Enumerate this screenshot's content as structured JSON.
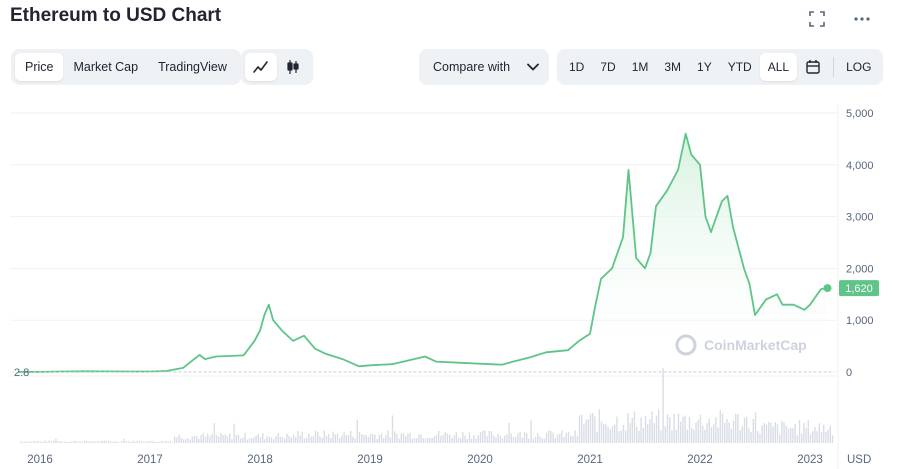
{
  "header": {
    "title": "Ethereum to USD Chart"
  },
  "chart_tabs": [
    {
      "label": "Price",
      "active": true
    },
    {
      "label": "Market Cap",
      "active": false
    },
    {
      "label": "TradingView",
      "active": false
    }
  ],
  "chart_style": {
    "line_icon": "line-chart-icon",
    "candle_icon": "candlestick-icon",
    "active": "line"
  },
  "compare": {
    "label": "Compare with",
    "icon": "chevron-down-icon"
  },
  "ranges": [
    {
      "label": "1D",
      "active": false
    },
    {
      "label": "7D",
      "active": false
    },
    {
      "label": "1M",
      "active": false
    },
    {
      "label": "3M",
      "active": false
    },
    {
      "label": "1Y",
      "active": false
    },
    {
      "label": "YTD",
      "active": false
    },
    {
      "label": "ALL",
      "active": true
    }
  ],
  "calendar_icon": "calendar-icon",
  "log_label": "LOG",
  "watermark": "CoinMarketCap",
  "colors": {
    "line": "#5ec487",
    "fill_top": "#d4f1de",
    "volume": "#d8dde6",
    "grid": "#eff2f5",
    "text_muted": "#58667e"
  },
  "chart_data": {
    "type": "area",
    "title": "Ethereum to USD Chart",
    "x_tick_labels": [
      "2016",
      "2017",
      "2018",
      "2019",
      "2020",
      "2021",
      "2022",
      "2023"
    ],
    "x_ticks": [
      2016.0,
      2017.0,
      2018.0,
      2019.0,
      2020.0,
      2021.0,
      2022.0,
      2023.0
    ],
    "y_ticks": [
      0,
      1000,
      2000,
      3000,
      4000,
      5000
    ],
    "y_tick_labels": [
      "0",
      "1,000",
      "2,000",
      "3,000",
      "4,000",
      "5,000"
    ],
    "ylim": [
      0,
      5000
    ],
    "xlim": [
      2015.8,
      2023.2
    ],
    "y_unit": "USD",
    "start_label": "2.8",
    "start_value": 2.8,
    "current_label": "1,620",
    "current_value": 1620,
    "grid": true,
    "series": [
      {
        "x": [
          2015.8,
          2016.0,
          2016.2,
          2016.4,
          2016.6,
          2016.8,
          2017.0,
          2017.15,
          2017.3,
          2017.45,
          2017.5,
          2017.6,
          2017.75,
          2017.85,
          2017.95,
          2018.0,
          2018.04,
          2018.08,
          2018.12,
          2018.2,
          2018.3,
          2018.4,
          2018.5,
          2018.6,
          2018.75,
          2018.9,
          2019.0,
          2019.2,
          2019.4,
          2019.5,
          2019.6,
          2019.8,
          2020.0,
          2020.2,
          2020.3,
          2020.45,
          2020.6,
          2020.8,
          2020.9,
          2021.0,
          2021.05,
          2021.1,
          2021.2,
          2021.3,
          2021.35,
          2021.42,
          2021.5,
          2021.55,
          2021.6,
          2021.7,
          2021.8,
          2021.87,
          2021.92,
          2022.0,
          2022.05,
          2022.1,
          2022.2,
          2022.25,
          2022.3,
          2022.4,
          2022.45,
          2022.5,
          2022.6,
          2022.7,
          2022.75,
          2022.85,
          2022.95,
          2023.0,
          2023.1,
          2023.15
        ],
        "values": [
          2.8,
          1,
          10,
          14,
          12,
          10,
          9,
          20,
          80,
          330,
          250,
          300,
          310,
          320,
          600,
          800,
          1100,
          1300,
          1000,
          800,
          600,
          700,
          450,
          350,
          250,
          110,
          130,
          150,
          250,
          300,
          200,
          180,
          160,
          140,
          200,
          280,
          380,
          420,
          600,
          740,
          1300,
          1800,
          2000,
          2600,
          3900,
          2200,
          2000,
          2300,
          3200,
          3500,
          3900,
          4600,
          4200,
          4000,
          3000,
          2700,
          3300,
          3400,
          2800,
          2000,
          1700,
          1100,
          1400,
          1500,
          1300,
          1300,
          1200,
          1300,
          1600,
          1620
        ]
      }
    ]
  }
}
